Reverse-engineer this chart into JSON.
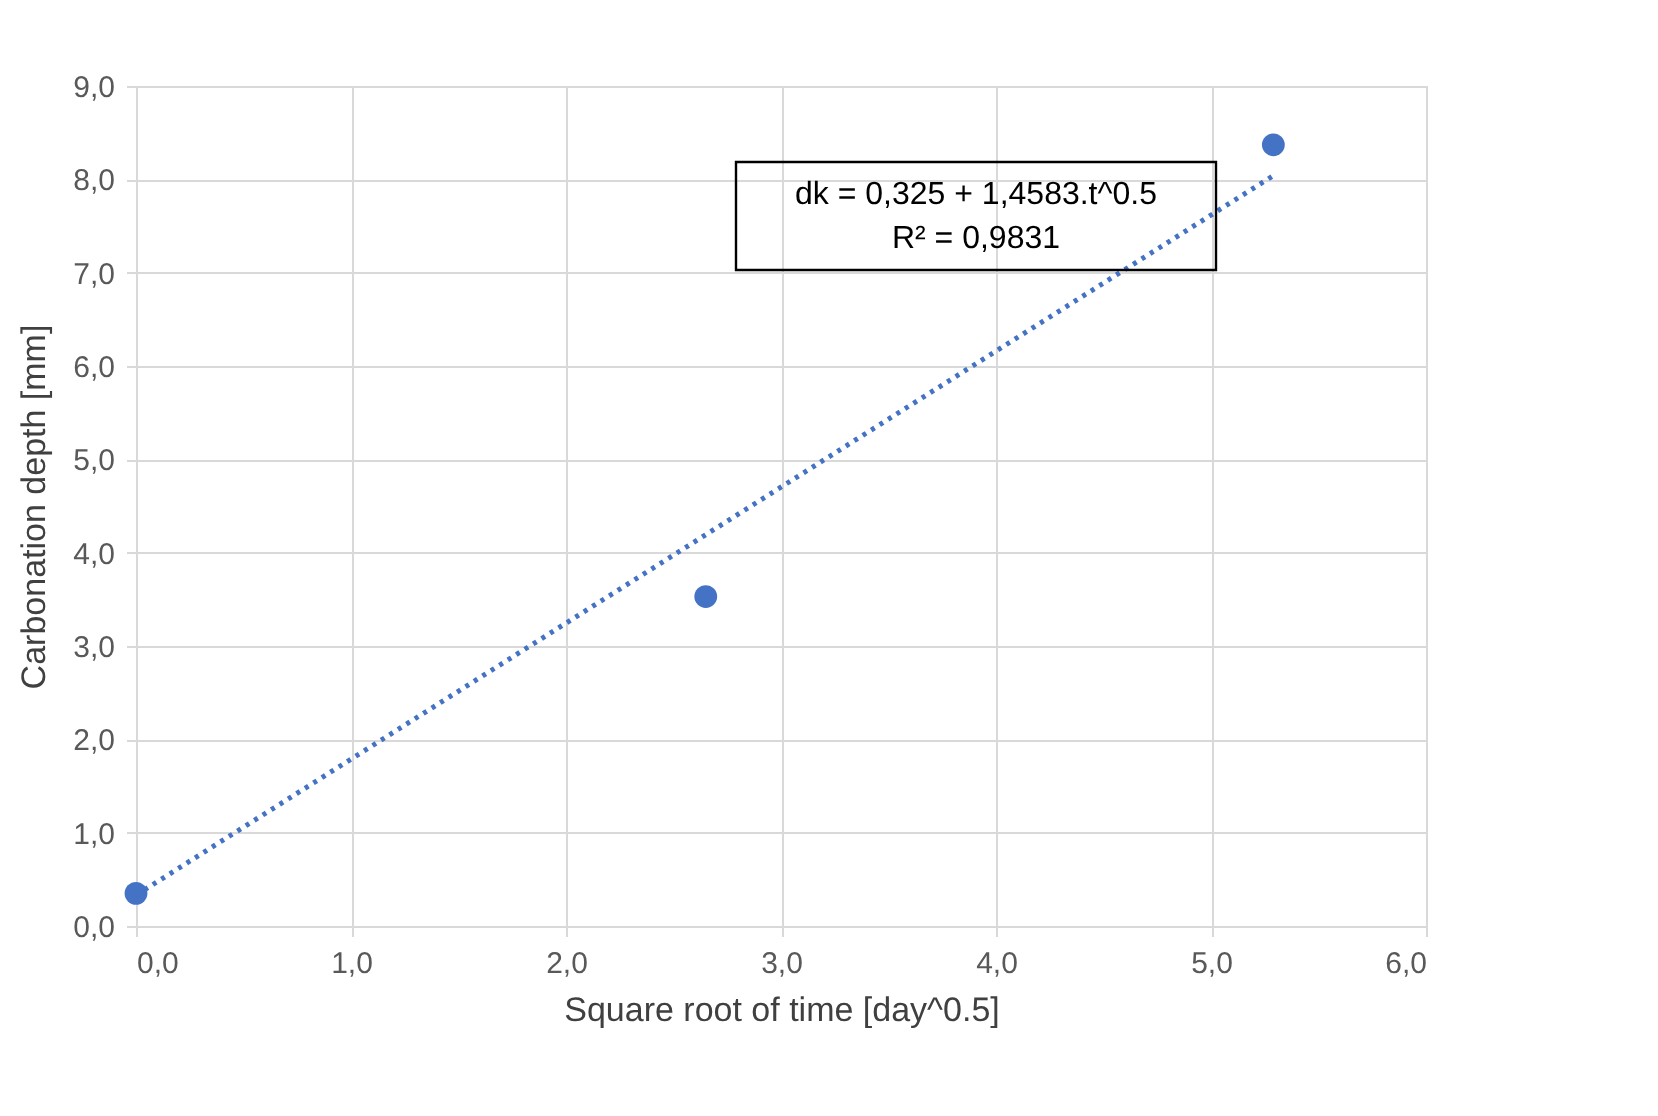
{
  "chart_data": {
    "type": "scatter",
    "xlabel": "Square root of time [day^0.5]",
    "ylabel": "Carbonation depth [mm]",
    "annotations": [
      "dk = 0,325 + 1,4583.t^0.5",
      "R² = 0,9831"
    ],
    "series": [
      {
        "color": "#4472c4",
        "x": [
          0,
          2.65,
          5.29
        ],
        "values": [
          0.35,
          3.53,
          8.37
        ],
        "marker": "circle"
      },
      {
        "type": "line",
        "color": "#4472c4",
        "x": [
          0,
          5.29
        ],
        "values": [
          0.33,
          8.04
        ],
        "line_style": "dotted"
      }
    ],
    "xlim": [
      0,
      6
    ],
    "ylim": [
      0,
      9
    ],
    "xticks": [
      {
        "value": 0,
        "label": "0,0"
      },
      {
        "value": 1,
        "label": "1,0"
      },
      {
        "value": 2,
        "label": "2,0"
      },
      {
        "value": 3,
        "label": "3,0"
      },
      {
        "value": 4,
        "label": "4,0"
      },
      {
        "value": 5,
        "label": "5,0"
      },
      {
        "value": 6,
        "label": "6,0"
      }
    ],
    "yticks": [
      {
        "value": 0,
        "label": "0,0"
      },
      {
        "value": 1,
        "label": "1,0"
      },
      {
        "value": 2,
        "label": "2,0"
      },
      {
        "value": 3,
        "label": "3,0"
      },
      {
        "value": 4,
        "label": "4,0"
      },
      {
        "value": 5,
        "label": "5,0"
      },
      {
        "value": 6,
        "label": "6,0"
      },
      {
        "value": 7,
        "label": "7,0"
      },
      {
        "value": 8,
        "label": "8,0"
      },
      {
        "value": 9,
        "label": "9,0"
      }
    ],
    "grid": true
  }
}
